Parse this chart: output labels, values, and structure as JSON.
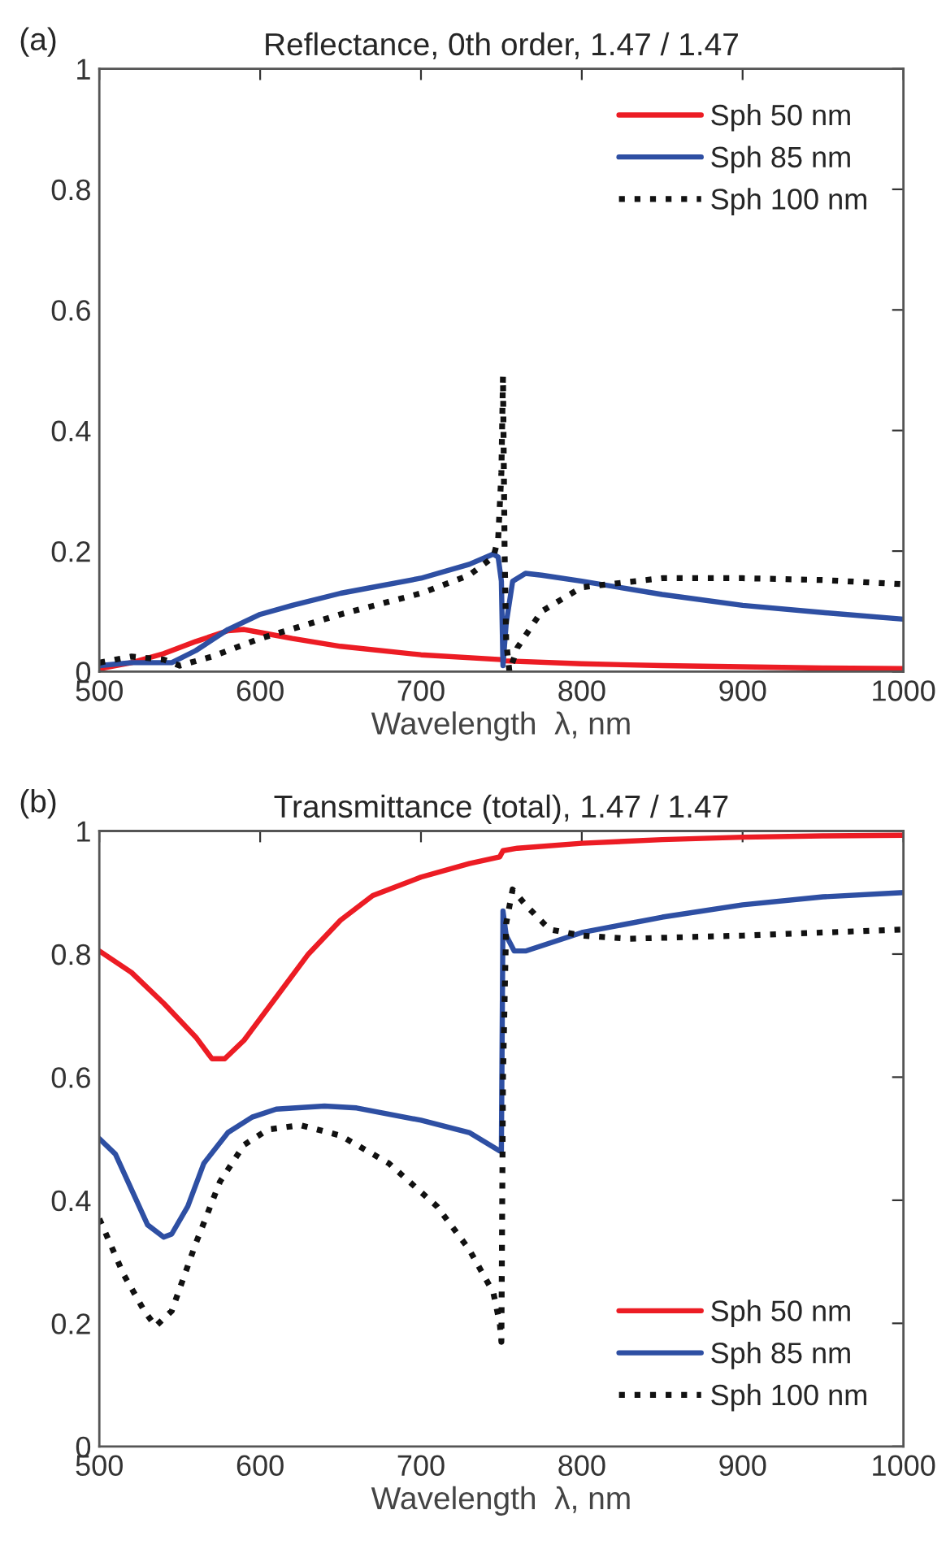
{
  "chart_data": [
    {
      "type": "line",
      "title": "Reflectance, 0th order, 1.47 / 1.47",
      "xlabel": "Wavelength  λ, nm",
      "annotations": [
        "(a)"
      ],
      "xlim": [
        500,
        1000
      ],
      "xticks": [
        500,
        600,
        700,
        800,
        900,
        1000
      ],
      "ylim": [
        0,
        1
      ],
      "yticks": [
        0,
        0.2,
        0.4,
        0.6,
        0.8,
        1
      ],
      "grid": false,
      "legend": "top right",
      "series": [
        {
          "name": "Sph 50 nm",
          "color": "#ec1c24",
          "line_style": "solid",
          "x": [
            500,
            520,
            540,
            560,
            580,
            590,
            600,
            620,
            650,
            700,
            750,
            752,
            800,
            850,
            900,
            950,
            1000
          ],
          "values": [
            0.005,
            0.015,
            0.03,
            0.05,
            0.068,
            0.07,
            0.065,
            0.055,
            0.042,
            0.028,
            0.02,
            0.018,
            0.013,
            0.01,
            0.008,
            0.006,
            0.005
          ]
        },
        {
          "name": "Sph 85 nm",
          "color": "#2e4fa3",
          "line_style": "solid",
          "x": [
            500,
            520,
            545,
            560,
            580,
            600,
            620,
            650,
            700,
            730,
            745,
            748,
            750,
            751,
            753,
            757,
            765,
            775,
            800,
            850,
            900,
            950,
            1000
          ],
          "values": [
            0.01,
            0.015,
            0.015,
            0.035,
            0.07,
            0.095,
            0.11,
            0.13,
            0.155,
            0.178,
            0.195,
            0.19,
            0.15,
            0.01,
            0.08,
            0.15,
            0.163,
            0.16,
            0.15,
            0.128,
            0.11,
            0.098,
            0.087
          ]
        },
        {
          "name": "Sph 100 nm",
          "color": "#111111",
          "line_style": "dotted",
          "x": [
            500,
            520,
            540,
            550,
            570,
            600,
            650,
            700,
            730,
            745,
            748,
            750,
            751,
            752,
            753,
            755,
            760,
            775,
            800,
            850,
            900,
            950,
            1000
          ],
          "values": [
            0.015,
            0.025,
            0.02,
            0.01,
            0.025,
            0.055,
            0.095,
            0.13,
            0.16,
            0.19,
            0.22,
            0.33,
            0.49,
            0.2,
            0.05,
            0.0,
            0.04,
            0.1,
            0.14,
            0.155,
            0.155,
            0.152,
            0.145
          ]
        }
      ]
    },
    {
      "type": "line",
      "title": "Transmittance (total), 1.47 / 1.47",
      "xlabel": "Wavelength  λ, nm",
      "annotations": [
        "(b)"
      ],
      "xlim": [
        500,
        1000
      ],
      "xticks": [
        500,
        600,
        700,
        800,
        900,
        1000
      ],
      "ylim": [
        0,
        1
      ],
      "yticks": [
        0,
        0.2,
        0.4,
        0.6,
        0.8,
        1
      ],
      "grid": false,
      "legend": "lower right",
      "series": [
        {
          "name": "Sph 50 nm",
          "color": "#ec1c24",
          "line_style": "solid",
          "x": [
            500,
            520,
            540,
            560,
            570,
            578,
            590,
            610,
            630,
            650,
            670,
            700,
            730,
            749,
            751,
            760,
            800,
            850,
            900,
            950,
            1000
          ],
          "values": [
            0.805,
            0.77,
            0.72,
            0.665,
            0.63,
            0.63,
            0.66,
            0.73,
            0.8,
            0.855,
            0.895,
            0.925,
            0.947,
            0.958,
            0.968,
            0.972,
            0.98,
            0.986,
            0.99,
            0.992,
            0.993
          ]
        },
        {
          "name": "Sph 85 nm",
          "color": "#2e4fa3",
          "line_style": "solid",
          "x": [
            500,
            510,
            530,
            540,
            545,
            555,
            565,
            580,
            595,
            610,
            640,
            660,
            700,
            730,
            749,
            750,
            751,
            753,
            758,
            765,
            800,
            850,
            900,
            950,
            1000
          ],
          "values": [
            0.5,
            0.475,
            0.36,
            0.34,
            0.345,
            0.39,
            0.46,
            0.51,
            0.535,
            0.548,
            0.553,
            0.55,
            0.53,
            0.51,
            0.48,
            0.48,
            0.87,
            0.83,
            0.805,
            0.805,
            0.835,
            0.86,
            0.88,
            0.893,
            0.9
          ]
        },
        {
          "name": "Sph 100 nm",
          "color": "#111111",
          "line_style": "dotted",
          "x": [
            500,
            515,
            528,
            535,
            545,
            560,
            575,
            590,
            605,
            625,
            650,
            680,
            710,
            730,
            745,
            749,
            750,
            751,
            753,
            757,
            765,
            780,
            800,
            830,
            900,
            1000
          ],
          "values": [
            0.37,
            0.28,
            0.22,
            0.195,
            0.22,
            0.33,
            0.43,
            0.49,
            0.515,
            0.522,
            0.505,
            0.46,
            0.39,
            0.32,
            0.25,
            0.2,
            0.17,
            0.6,
            0.85,
            0.905,
            0.88,
            0.84,
            0.83,
            0.825,
            0.83,
            0.84
          ]
        }
      ]
    }
  ]
}
